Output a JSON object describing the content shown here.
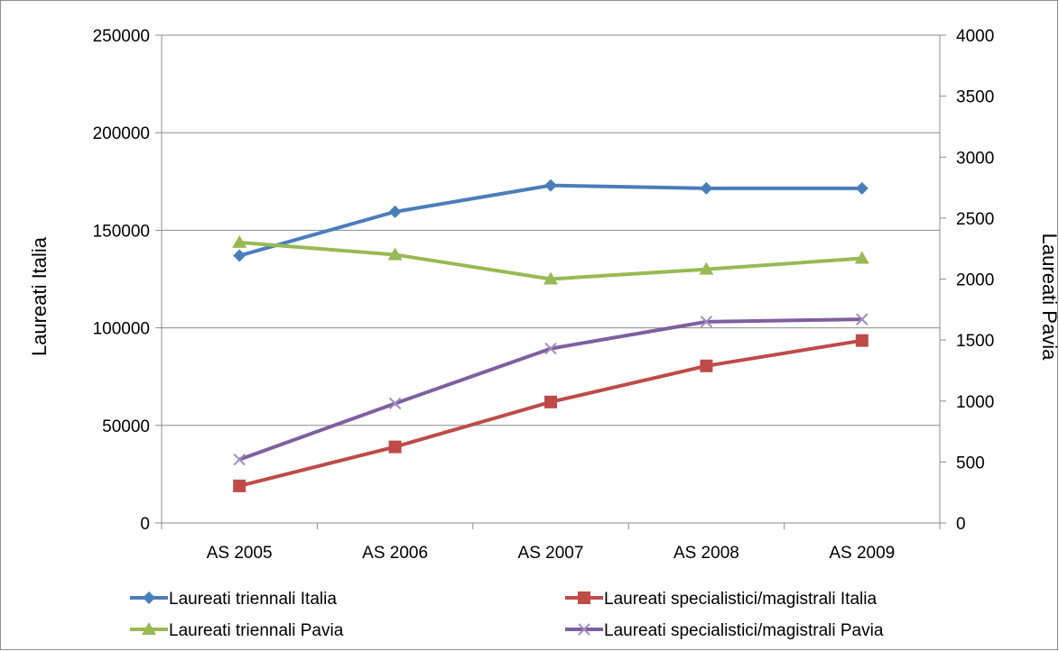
{
  "chart_data": {
    "type": "line",
    "categories": [
      "AS 2005",
      "AS 2006",
      "AS 2007",
      "AS 2008",
      "AS 2009"
    ],
    "ylabel_left": "Laureati Italia",
    "ylabel_right": "Laureati Pavia",
    "ylim_left": [
      0,
      250000
    ],
    "ylim_right": [
      0,
      4000
    ],
    "yticks_left": [
      "250000",
      "200000",
      "150000",
      "100000",
      "50000",
      "0"
    ],
    "yticks_right": [
      "4000",
      "3500",
      "3000",
      "2500",
      "2000",
      "1500",
      "1000",
      "500",
      "0"
    ],
    "grid": true,
    "legend_position": "bottom",
    "series": [
      {
        "name": "Laureati triennali Italia",
        "axis": "left",
        "color": "#4a7ebb",
        "marker": "diamond",
        "values": [
          137000,
          159500,
          173000,
          171500,
          171500
        ]
      },
      {
        "name": "Laureati specialistici/magistrali Italia",
        "axis": "left",
        "color": "#be4b48",
        "marker": "square",
        "values": [
          19000,
          39000,
          62000,
          80500,
          93500
        ]
      },
      {
        "name": "Laureati triennali Pavia",
        "axis": "right",
        "color": "#98b954",
        "marker": "triangle",
        "values": [
          2300,
          2200,
          2000,
          2080,
          2170
        ]
      },
      {
        "name": "Laureati specialistici/magistrali Pavia",
        "axis": "right",
        "color": "#7d60a0",
        "marker": "x",
        "values": [
          520,
          980,
          1430,
          1650,
          1670
        ]
      }
    ]
  }
}
